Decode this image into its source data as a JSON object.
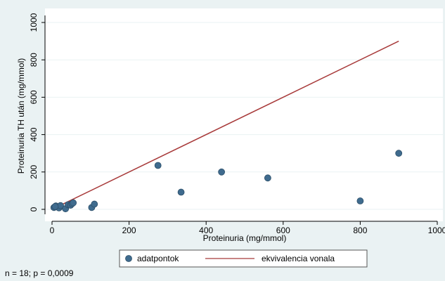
{
  "chart_data": {
    "type": "scatter",
    "title": "",
    "xlabel": "Proteinuria (mg/mmol)",
    "ylabel": "Proteinuria TH után (mg/mmol)",
    "xlim": [
      0,
      1000
    ],
    "ylim": [
      0,
      1000
    ],
    "xticks": [
      "0",
      "200",
      "400",
      "600",
      "800",
      "1000"
    ],
    "yticks": [
      "0",
      "200",
      "400",
      "600",
      "800",
      "1000"
    ],
    "grid": "horizontal",
    "legend_position": "bottom",
    "series": [
      {
        "name": "adatpontok",
        "type": "scatter",
        "color": "#3f6b8e",
        "x": [
          5,
          10,
          18,
          22,
          35,
          42,
          48,
          52,
          55,
          103,
          110,
          275,
          335,
          440,
          560,
          800,
          900,
          8
        ],
        "y": [
          10,
          18,
          8,
          20,
          3,
          25,
          22,
          30,
          35,
          10,
          28,
          235,
          92,
          200,
          168,
          45,
          300,
          15
        ]
      },
      {
        "name": "ekvivalencia vonala",
        "type": "line",
        "color": "#a83a3a",
        "x": [
          20,
          900
        ],
        "y": [
          20,
          900
        ]
      }
    ],
    "annotation": "n = 18; p = 0,0009"
  }
}
